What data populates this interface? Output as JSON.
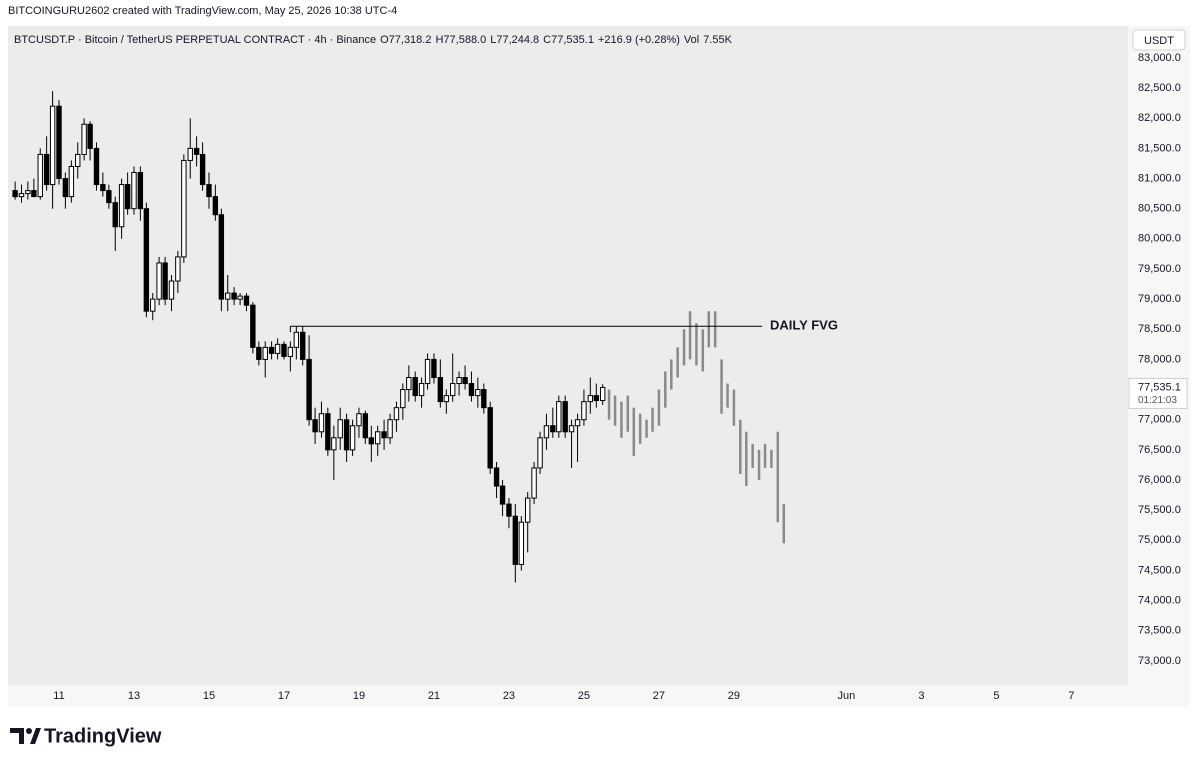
{
  "header": {
    "credit": "BITCOINGURU2602 created with TradingView.com, May 25, 2026 10:38 UTC-4",
    "symbol": "BTCUSDT.P · Bitcoin / TetherUS PERPETUAL CONTRACT · 4h · Binance",
    "legend": [
      "O77,318.2",
      "H77,588.0",
      "L77,244.8",
      "C77,535.1",
      "+216.9 (+0.28%)",
      "Vol",
      "7.55K"
    ],
    "currency": "USDT"
  },
  "footer": {
    "brand": "TradingView"
  },
  "chart_data": {
    "type": "candlestick",
    "xlim": [
      9.64,
      39.51
    ],
    "xticks": [
      11,
      13,
      15,
      17,
      19,
      21,
      23,
      25,
      27,
      29,
      {
        "value": 32,
        "label": "Jun"
      },
      {
        "value": 34,
        "label": "3"
      },
      {
        "value": 36,
        "label": "5"
      },
      {
        "value": 38,
        "label": "7"
      }
    ],
    "ylim": [
      72600,
      83530
    ],
    "yticks": [
      {
        "value": 73000,
        "label": "73,000.0"
      },
      {
        "value": 73500,
        "label": "73,500.0"
      },
      {
        "value": 74000,
        "label": "74,000.0"
      },
      {
        "value": 74500,
        "label": "74,500.0"
      },
      {
        "value": 75000,
        "label": "75,000.0"
      },
      {
        "value": 75500,
        "label": "75,500.0"
      },
      {
        "value": 76000,
        "label": "76,000.0"
      },
      {
        "value": 76500,
        "label": "76,500.0"
      },
      {
        "value": 77000,
        "label": "77,000.0"
      },
      {
        "value": 78000,
        "label": "78,000.0"
      },
      {
        "value": 78500,
        "label": "78,500.0"
      },
      {
        "value": 79000,
        "label": "79,000.0"
      },
      {
        "value": 79500,
        "label": "79,500.0"
      },
      {
        "value": 80000,
        "label": "80,000.0"
      },
      {
        "value": 80500,
        "label": "80,500.0"
      },
      {
        "value": 81000,
        "label": "81,000.0"
      },
      {
        "value": 81500,
        "label": "81,500.0"
      },
      {
        "value": 82000,
        "label": "82,000.0"
      },
      {
        "value": 82500,
        "label": "82,500.0"
      },
      {
        "value": 83000,
        "label": "83,000.0"
      }
    ],
    "grid": false,
    "up_color": "#ffffff",
    "down_color": "#000000",
    "projection_color": "#8a8a8a",
    "current_price": {
      "value": 77535.1,
      "label": "77,535.1"
    },
    "countdown": "01:21:03",
    "annotation": {
      "text": "DAILY FVG",
      "value": 78550,
      "x": [
        17.17,
        29.75
      ]
    },
    "candles": [
      {
        "x": 9.83,
        "o": 80800,
        "h": 80950,
        "l": 80650,
        "c": 80700
      },
      {
        "x": 10,
        "o": 80700,
        "h": 80900,
        "l": 80600,
        "c": 80750
      },
      {
        "x": 10.17,
        "o": 80750,
        "h": 80950,
        "l": 80650,
        "c": 80800
      },
      {
        "x": 10.33,
        "o": 80800,
        "h": 81000,
        "l": 80700,
        "c": 80700
      },
      {
        "x": 10.5,
        "o": 80700,
        "h": 81500,
        "l": 80650,
        "c": 81400
      },
      {
        "x": 10.67,
        "o": 81400,
        "h": 81700,
        "l": 80800,
        "c": 80900
      },
      {
        "x": 10.83,
        "o": 80900,
        "h": 82450,
        "l": 80500,
        "c": 82200
      },
      {
        "x": 11,
        "o": 82200,
        "h": 82300,
        "l": 80900,
        "c": 81000
      },
      {
        "x": 11.17,
        "o": 81000,
        "h": 81100,
        "l": 80500,
        "c": 80700
      },
      {
        "x": 11.33,
        "o": 80700,
        "h": 81300,
        "l": 80600,
        "c": 81200
      },
      {
        "x": 11.5,
        "o": 81200,
        "h": 81600,
        "l": 81000,
        "c": 81400
      },
      {
        "x": 11.67,
        "o": 81400,
        "h": 82000,
        "l": 81300,
        "c": 81900
      },
      {
        "x": 11.83,
        "o": 81900,
        "h": 81950,
        "l": 81300,
        "c": 81500
      },
      {
        "x": 12,
        "o": 81500,
        "h": 81600,
        "l": 80800,
        "c": 80900
      },
      {
        "x": 12.17,
        "o": 80900,
        "h": 81100,
        "l": 80700,
        "c": 80800
      },
      {
        "x": 12.33,
        "o": 80800,
        "h": 80900,
        "l": 80500,
        "c": 80600
      },
      {
        "x": 12.5,
        "o": 80600,
        "h": 80700,
        "l": 79800,
        "c": 80200
      },
      {
        "x": 12.67,
        "o": 80200,
        "h": 81000,
        "l": 80000,
        "c": 80900
      },
      {
        "x": 12.83,
        "o": 80900,
        "h": 81100,
        "l": 80400,
        "c": 80500
      },
      {
        "x": 13,
        "o": 80500,
        "h": 81200,
        "l": 80400,
        "c": 81100
      },
      {
        "x": 13.17,
        "o": 81100,
        "h": 81200,
        "l": 80300,
        "c": 80500
      },
      {
        "x": 13.33,
        "o": 80500,
        "h": 80600,
        "l": 78700,
        "c": 78800
      },
      {
        "x": 13.5,
        "o": 78800,
        "h": 79100,
        "l": 78650,
        "c": 79000
      },
      {
        "x": 13.67,
        "o": 79000,
        "h": 79700,
        "l": 78900,
        "c": 79600
      },
      {
        "x": 13.83,
        "o": 79600,
        "h": 79700,
        "l": 78900,
        "c": 79000
      },
      {
        "x": 14,
        "o": 79000,
        "h": 79400,
        "l": 78800,
        "c": 79300
      },
      {
        "x": 14.17,
        "o": 79300,
        "h": 79800,
        "l": 79100,
        "c": 79700
      },
      {
        "x": 14.33,
        "o": 79700,
        "h": 81400,
        "l": 79600,
        "c": 81300
      },
      {
        "x": 14.5,
        "o": 81300,
        "h": 82000,
        "l": 81000,
        "c": 81500
      },
      {
        "x": 14.67,
        "o": 81500,
        "h": 81700,
        "l": 81200,
        "c": 81400
      },
      {
        "x": 14.83,
        "o": 81400,
        "h": 81600,
        "l": 80800,
        "c": 80900
      },
      {
        "x": 15,
        "o": 80900,
        "h": 81100,
        "l": 80500,
        "c": 80700
      },
      {
        "x": 15.17,
        "o": 80700,
        "h": 80900,
        "l": 80300,
        "c": 80400
      },
      {
        "x": 15.33,
        "o": 80400,
        "h": 80500,
        "l": 78800,
        "c": 79000
      },
      {
        "x": 15.5,
        "o": 79000,
        "h": 79400,
        "l": 78800,
        "c": 79100
      },
      {
        "x": 15.67,
        "o": 79100,
        "h": 79200,
        "l": 78900,
        "c": 79000
      },
      {
        "x": 15.83,
        "o": 79000,
        "h": 79100,
        "l": 78900,
        "c": 79050
      },
      {
        "x": 16,
        "o": 79050,
        "h": 79100,
        "l": 78800,
        "c": 78900
      },
      {
        "x": 16.17,
        "o": 78900,
        "h": 78950,
        "l": 78100,
        "c": 78200
      },
      {
        "x": 16.33,
        "o": 78200,
        "h": 78300,
        "l": 77900,
        "c": 78000
      },
      {
        "x": 16.5,
        "o": 78000,
        "h": 78300,
        "l": 77700,
        "c": 78200
      },
      {
        "x": 16.67,
        "o": 78200,
        "h": 78300,
        "l": 78000,
        "c": 78100
      },
      {
        "x": 16.83,
        "o": 78100,
        "h": 78350,
        "l": 78000,
        "c": 78250
      },
      {
        "x": 17,
        "o": 78250,
        "h": 78300,
        "l": 78000,
        "c": 78050
      },
      {
        "x": 17.17,
        "o": 78050,
        "h": 78300,
        "l": 77800,
        "c": 78200
      },
      {
        "x": 17.33,
        "o": 78200,
        "h": 78550,
        "l": 78000,
        "c": 78450
      },
      {
        "x": 17.5,
        "o": 78450,
        "h": 78550,
        "l": 77900,
        "c": 78000
      },
      {
        "x": 17.67,
        "o": 78000,
        "h": 78400,
        "l": 76900,
        "c": 77000
      },
      {
        "x": 17.83,
        "o": 77000,
        "h": 77200,
        "l": 76600,
        "c": 76800
      },
      {
        "x": 18,
        "o": 76800,
        "h": 77300,
        "l": 76700,
        "c": 77100
      },
      {
        "x": 18.17,
        "o": 77100,
        "h": 77200,
        "l": 76400,
        "c": 76500
      },
      {
        "x": 18.33,
        "o": 76500,
        "h": 76900,
        "l": 76000,
        "c": 76700
      },
      {
        "x": 18.5,
        "o": 76700,
        "h": 77200,
        "l": 76500,
        "c": 77000
      },
      {
        "x": 18.67,
        "o": 77000,
        "h": 77100,
        "l": 76300,
        "c": 76500
      },
      {
        "x": 18.83,
        "o": 76500,
        "h": 77000,
        "l": 76400,
        "c": 76900
      },
      {
        "x": 19,
        "o": 76900,
        "h": 77200,
        "l": 76700,
        "c": 77100
      },
      {
        "x": 19.17,
        "o": 77100,
        "h": 77150,
        "l": 76600,
        "c": 76700
      },
      {
        "x": 19.33,
        "o": 76700,
        "h": 76900,
        "l": 76300,
        "c": 76600
      },
      {
        "x": 19.5,
        "o": 76600,
        "h": 76900,
        "l": 76400,
        "c": 76800
      },
      {
        "x": 19.67,
        "o": 76800,
        "h": 77000,
        "l": 76500,
        "c": 76700
      },
      {
        "x": 19.83,
        "o": 76700,
        "h": 77100,
        "l": 76600,
        "c": 77000
      },
      {
        "x": 20,
        "o": 77000,
        "h": 77300,
        "l": 76800,
        "c": 77200
      },
      {
        "x": 20.17,
        "o": 77200,
        "h": 77600,
        "l": 77000,
        "c": 77500
      },
      {
        "x": 20.33,
        "o": 77500,
        "h": 77900,
        "l": 77300,
        "c": 77700
      },
      {
        "x": 20.5,
        "o": 77700,
        "h": 77800,
        "l": 77300,
        "c": 77400
      },
      {
        "x": 20.67,
        "o": 77400,
        "h": 77700,
        "l": 77200,
        "c": 77600
      },
      {
        "x": 20.83,
        "o": 77600,
        "h": 78100,
        "l": 77500,
        "c": 78000
      },
      {
        "x": 21,
        "o": 78000,
        "h": 78100,
        "l": 77600,
        "c": 77700
      },
      {
        "x": 21.17,
        "o": 77700,
        "h": 78000,
        "l": 77200,
        "c": 77300
      },
      {
        "x": 21.33,
        "o": 77300,
        "h": 77500,
        "l": 77100,
        "c": 77400
      },
      {
        "x": 21.5,
        "o": 77400,
        "h": 78100,
        "l": 77300,
        "c": 77600
      },
      {
        "x": 21.67,
        "o": 77600,
        "h": 77800,
        "l": 77400,
        "c": 77700
      },
      {
        "x": 21.83,
        "o": 77700,
        "h": 77900,
        "l": 77500,
        "c": 77600
      },
      {
        "x": 22,
        "o": 77600,
        "h": 77800,
        "l": 77300,
        "c": 77400
      },
      {
        "x": 22.17,
        "o": 77400,
        "h": 77700,
        "l": 77200,
        "c": 77500
      },
      {
        "x": 22.33,
        "o": 77500,
        "h": 77600,
        "l": 77100,
        "c": 77200
      },
      {
        "x": 22.5,
        "o": 77200,
        "h": 77300,
        "l": 76100,
        "c": 76200
      },
      {
        "x": 22.67,
        "o": 76200,
        "h": 76300,
        "l": 75700,
        "c": 75900
      },
      {
        "x": 22.83,
        "o": 75900,
        "h": 76000,
        "l": 75400,
        "c": 75600
      },
      {
        "x": 23,
        "o": 75600,
        "h": 75700,
        "l": 75200,
        "c": 75400
      },
      {
        "x": 23.17,
        "o": 75400,
        "h": 75600,
        "l": 74300,
        "c": 74600
      },
      {
        "x": 23.33,
        "o": 74600,
        "h": 75400,
        "l": 74500,
        "c": 75300
      },
      {
        "x": 23.5,
        "o": 75300,
        "h": 75800,
        "l": 74800,
        "c": 75700
      },
      {
        "x": 23.67,
        "o": 75700,
        "h": 76300,
        "l": 75600,
        "c": 76200
      },
      {
        "x": 23.83,
        "o": 76200,
        "h": 76800,
        "l": 76100,
        "c": 76700
      },
      {
        "x": 24,
        "o": 76700,
        "h": 77100,
        "l": 76500,
        "c": 76900
      },
      {
        "x": 24.17,
        "o": 76900,
        "h": 77200,
        "l": 76700,
        "c": 76800
      },
      {
        "x": 24.33,
        "o": 76800,
        "h": 77400,
        "l": 76700,
        "c": 77300
      },
      {
        "x": 24.5,
        "o": 77300,
        "h": 77400,
        "l": 76700,
        "c": 76800
      },
      {
        "x": 24.67,
        "o": 76800,
        "h": 77000,
        "l": 76200,
        "c": 76900
      },
      {
        "x": 24.83,
        "o": 76900,
        "h": 77100,
        "l": 76300,
        "c": 77000
      },
      {
        "x": 25,
        "o": 77000,
        "h": 77500,
        "l": 76900,
        "c": 77300
      },
      {
        "x": 25.17,
        "o": 77300,
        "h": 77700,
        "l": 77100,
        "c": 77400
      },
      {
        "x": 25.33,
        "o": 77400,
        "h": 77600,
        "l": 77200,
        "c": 77318.2
      },
      {
        "x": 25.5,
        "o": 77318.2,
        "h": 77588,
        "l": 77244.8,
        "c": 77535.1
      }
    ],
    "projection": [
      {
        "x": 25.67,
        "h": 77500,
        "l": 77000
      },
      {
        "x": 25.83,
        "h": 77400,
        "l": 76900
      },
      {
        "x": 26,
        "h": 77300,
        "l": 76700
      },
      {
        "x": 26.17,
        "h": 77400,
        "l": 76800
      },
      {
        "x": 26.33,
        "h": 77200,
        "l": 76400
      },
      {
        "x": 26.5,
        "h": 77100,
        "l": 76600
      },
      {
        "x": 26.67,
        "h": 77000,
        "l": 76700
      },
      {
        "x": 26.83,
        "h": 77200,
        "l": 76800
      },
      {
        "x": 27,
        "h": 77500,
        "l": 76900
      },
      {
        "x": 27.17,
        "h": 77800,
        "l": 77200
      },
      {
        "x": 27.33,
        "h": 78000,
        "l": 77500
      },
      {
        "x": 27.5,
        "h": 78200,
        "l": 77700
      },
      {
        "x": 27.67,
        "h": 78500,
        "l": 77900
      },
      {
        "x": 27.83,
        "h": 78800,
        "l": 78000
      },
      {
        "x": 28,
        "h": 78600,
        "l": 77900
      },
      {
        "x": 28.17,
        "h": 78500,
        "l": 77800
      },
      {
        "x": 28.33,
        "h": 78800,
        "l": 78200
      },
      {
        "x": 28.5,
        "h": 78800,
        "l": 78200
      },
      {
        "x": 28.67,
        "h": 78000,
        "l": 77100
      },
      {
        "x": 28.83,
        "h": 77600,
        "l": 77200
      },
      {
        "x": 29,
        "h": 77500,
        "l": 76900
      },
      {
        "x": 29.17,
        "h": 77000,
        "l": 76100
      },
      {
        "x": 29.33,
        "h": 76800,
        "l": 75900
      },
      {
        "x": 29.5,
        "h": 76600,
        "l": 76200
      },
      {
        "x": 29.67,
        "h": 76500,
        "l": 76000
      },
      {
        "x": 29.83,
        "h": 76600,
        "l": 76200
      },
      {
        "x": 30,
        "h": 76500,
        "l": 76200
      },
      {
        "x": 30.17,
        "h": 76800,
        "l": 75300
      },
      {
        "x": 30.33,
        "h": 75600,
        "l": 74950
      }
    ]
  }
}
